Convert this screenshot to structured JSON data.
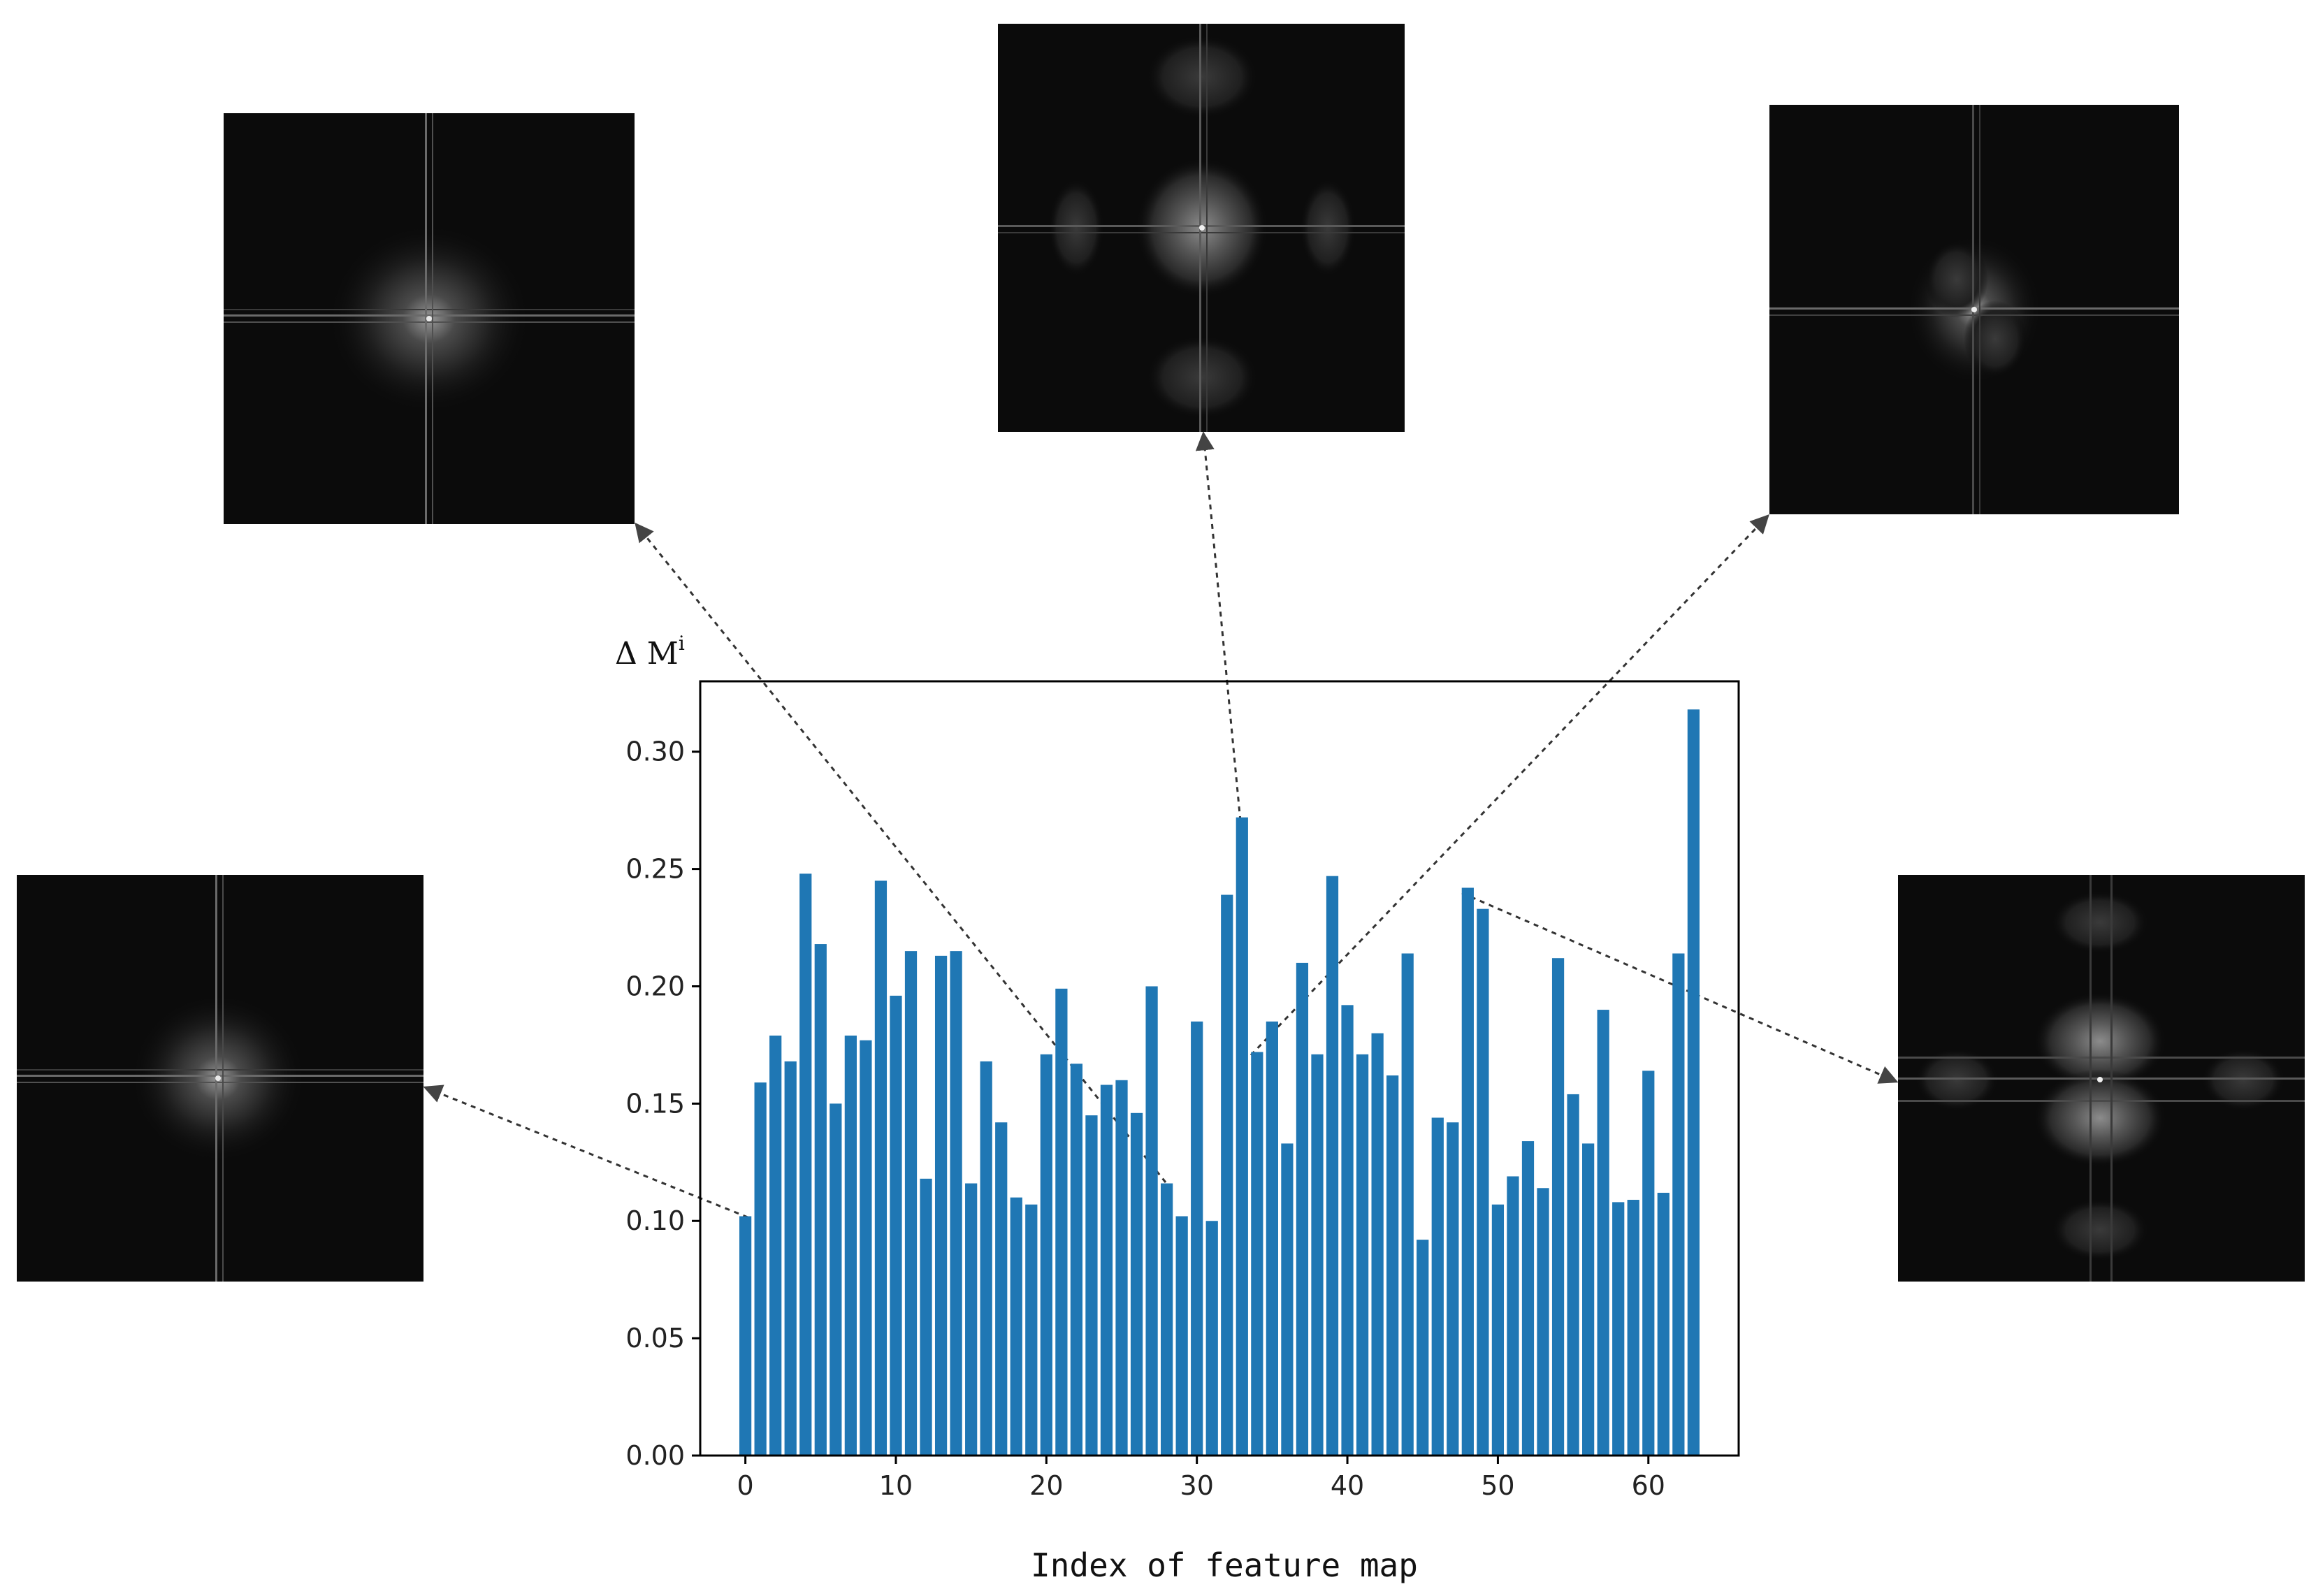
{
  "chart_data": {
    "type": "bar",
    "ylabel": "Δ M",
    "ylabel_superscript": "i",
    "xlabel": "Index of feature map",
    "xlim": [
      -3,
      66
    ],
    "ylim": [
      0,
      0.33
    ],
    "x_ticks": [
      0,
      10,
      20,
      30,
      40,
      50,
      60
    ],
    "y_ticks": [
      0.0,
      0.05,
      0.1,
      0.15,
      0.2,
      0.25,
      0.3
    ],
    "grid": false,
    "bar_color": "#1f77b4",
    "x": [
      0,
      1,
      2,
      3,
      4,
      5,
      6,
      7,
      8,
      9,
      10,
      11,
      12,
      13,
      14,
      15,
      16,
      17,
      18,
      19,
      20,
      21,
      22,
      23,
      24,
      25,
      26,
      27,
      28,
      29,
      30,
      31,
      32,
      33,
      34,
      35,
      36,
      37,
      38,
      39,
      40,
      41,
      42,
      43,
      44,
      45,
      46,
      47,
      48,
      49,
      50,
      51,
      52,
      53,
      54,
      55,
      56,
      57,
      58,
      59,
      60,
      61,
      62,
      63
    ],
    "values": [
      0.102,
      0.159,
      0.179,
      0.168,
      0.248,
      0.218,
      0.15,
      0.179,
      0.177,
      0.245,
      0.196,
      0.215,
      0.118,
      0.213,
      0.215,
      0.116,
      0.168,
      0.142,
      0.11,
      0.107,
      0.171,
      0.199,
      0.167,
      0.145,
      0.158,
      0.16,
      0.146,
      0.2,
      0.116,
      0.102,
      0.185,
      0.1,
      0.239,
      0.272,
      0.172,
      0.185,
      0.133,
      0.21,
      0.171,
      0.247,
      0.192,
      0.171,
      0.18,
      0.162,
      0.214,
      0.092,
      0.144,
      0.142,
      0.242,
      0.233,
      0.107,
      0.119,
      0.134,
      0.114,
      0.212,
      0.154,
      0.133,
      0.19,
      0.108,
      0.109,
      0.164,
      0.112,
      0.214,
      0.318
    ],
    "insets": [
      {
        "name": "spectrum-inset-top-left",
        "feature_index": 28,
        "pattern": "cross"
      },
      {
        "name": "spectrum-inset-top-center",
        "feature_index": 33,
        "pattern": "blob"
      },
      {
        "name": "spectrum-inset-top-right",
        "feature_index": 34,
        "pattern": "cross-blob"
      },
      {
        "name": "spectrum-inset-left",
        "feature_index": 0,
        "pattern": "cross"
      },
      {
        "name": "spectrum-inset-right",
        "feature_index": 48,
        "pattern": "multi-blob"
      }
    ]
  }
}
